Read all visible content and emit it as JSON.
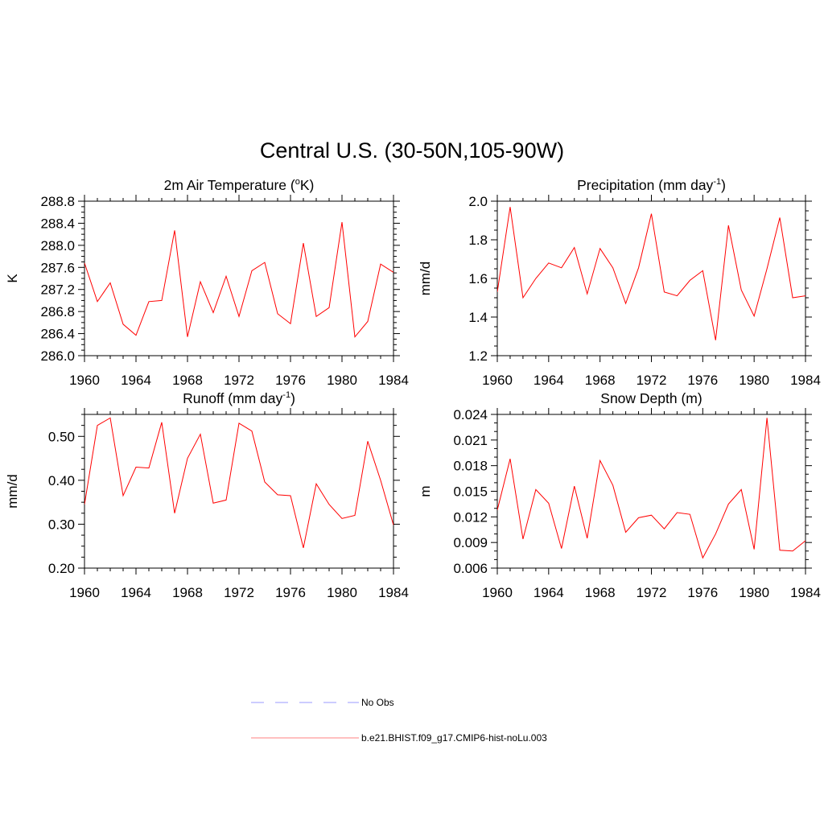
{
  "figure": {
    "title": "Central U.S. (30-50N,105-90W)"
  },
  "colors": {
    "model_line": "#ff0000",
    "obs_line": "#9999ff",
    "model_legend": "#ff8080",
    "axis": "#000000"
  },
  "legend": {
    "items": [
      {
        "label": "No Obs",
        "style": "dashed",
        "color": "#9999ff"
      },
      {
        "label": "b.e21.BHIST.f09_g17.CMIP6-hist-noLu.003",
        "style": "solid",
        "color": "#ff8080"
      }
    ]
  },
  "chart_data": [
    {
      "type": "line",
      "title": "2m Air Temperature",
      "title_sup": "o",
      "title_pre": "2m Air Temperature (",
      "title_post": "K)",
      "ylabel": "K",
      "xlabel": "",
      "xlim": [
        1960,
        1984
      ],
      "ylim": [
        286.0,
        288.8
      ],
      "xticks": [
        1960,
        1964,
        1968,
        1972,
        1976,
        1980,
        1984
      ],
      "yticks": [
        286.0,
        286.4,
        286.8,
        287.2,
        287.6,
        288.0,
        288.4,
        288.8
      ],
      "ytick_labels": [
        "286.0",
        "286.4",
        "286.8",
        "287.2",
        "287.6",
        "288.0",
        "288.4",
        "288.8"
      ],
      "yminor": 4,
      "xminor": 4,
      "x": [
        1960,
        1961,
        1962,
        1963,
        1964,
        1965,
        1966,
        1967,
        1968,
        1969,
        1970,
        1971,
        1972,
        1973,
        1974,
        1975,
        1976,
        1977,
        1978,
        1979,
        1980,
        1981,
        1982,
        1983,
        1984
      ],
      "series": [
        {
          "values": [
            287.68,
            286.98,
            287.32,
            286.57,
            286.37,
            286.98,
            287.0,
            288.27,
            286.34,
            287.34,
            286.78,
            287.44,
            286.71,
            287.54,
            287.69,
            286.76,
            286.58,
            288.04,
            286.71,
            286.87,
            288.42,
            286.34,
            286.62,
            287.66,
            287.51
          ]
        }
      ]
    },
    {
      "type": "line",
      "title": "Precipitation",
      "title_pre": "Precipitation (mm day",
      "title_sup": "-1",
      "title_post": ")",
      "ylabel": "mm/d",
      "xlabel": "",
      "xlim": [
        1960,
        1984
      ],
      "ylim": [
        1.2,
        2.0
      ],
      "xticks": [
        1960,
        1964,
        1968,
        1972,
        1976,
        1980,
        1984
      ],
      "yticks": [
        1.2,
        1.4,
        1.6,
        1.8,
        2.0
      ],
      "ytick_labels": [
        "1.2",
        "1.4",
        "1.6",
        "1.8",
        "2.0"
      ],
      "yminor": 4,
      "xminor": 4,
      "x": [
        1960,
        1961,
        1962,
        1963,
        1964,
        1965,
        1966,
        1967,
        1968,
        1969,
        1970,
        1971,
        1972,
        1973,
        1974,
        1975,
        1976,
        1977,
        1978,
        1979,
        1980,
        1981,
        1982,
        1983,
        1984
      ],
      "series": [
        {
          "values": [
            1.53,
            1.97,
            1.5,
            1.6,
            1.68,
            1.655,
            1.76,
            1.52,
            1.755,
            1.655,
            1.47,
            1.655,
            1.935,
            1.53,
            1.51,
            1.59,
            1.64,
            1.28,
            1.875,
            1.54,
            1.405,
            1.65,
            1.915,
            1.5,
            1.51
          ]
        }
      ]
    },
    {
      "type": "line",
      "title": "Runoff",
      "title_pre": "Runoff (mm day",
      "title_sup": "-1",
      "title_post": ")",
      "ylabel": "mm/d",
      "xlabel": "",
      "xlim": [
        1960,
        1984
      ],
      "ylim": [
        0.2,
        0.55
      ],
      "xticks": [
        1960,
        1964,
        1968,
        1972,
        1976,
        1980,
        1984
      ],
      "yticks": [
        0.2,
        0.3,
        0.4,
        0.5
      ],
      "ytick_labels": [
        "0.20",
        "0.30",
        "0.40",
        "0.50"
      ],
      "yminor": 4,
      "xminor": 4,
      "x": [
        1960,
        1961,
        1962,
        1963,
        1964,
        1965,
        1966,
        1967,
        1968,
        1969,
        1970,
        1971,
        1972,
        1973,
        1974,
        1975,
        1976,
        1977,
        1978,
        1979,
        1980,
        1981,
        1982,
        1983,
        1984
      ],
      "series": [
        {
          "values": [
            0.345,
            0.525,
            0.542,
            0.365,
            0.43,
            0.428,
            0.532,
            0.325,
            0.45,
            0.505,
            0.348,
            0.355,
            0.53,
            0.512,
            0.396,
            0.367,
            0.365,
            0.246,
            0.392,
            0.345,
            0.313,
            0.32,
            0.489,
            0.4,
            0.298
          ]
        }
      ]
    },
    {
      "type": "line",
      "title": "Snow Depth (m)",
      "title_pre": "Snow Depth (m)",
      "title_sup": "",
      "title_post": "",
      "ylabel": "m",
      "xlabel": "",
      "xlim": [
        1960,
        1984
      ],
      "ylim": [
        0.006,
        0.024
      ],
      "xticks": [
        1960,
        1964,
        1968,
        1972,
        1976,
        1980,
        1984
      ],
      "yticks": [
        0.006,
        0.009,
        0.012,
        0.015,
        0.018,
        0.021,
        0.024
      ],
      "ytick_labels": [
        "0.006",
        "0.009",
        "0.012",
        "0.015",
        "0.018",
        "0.021",
        "0.024"
      ],
      "yminor": 3,
      "xminor": 4,
      "x": [
        1960,
        1961,
        1962,
        1963,
        1964,
        1965,
        1966,
        1967,
        1968,
        1969,
        1970,
        1971,
        1972,
        1973,
        1974,
        1975,
        1976,
        1977,
        1978,
        1979,
        1980,
        1981,
        1982,
        1983,
        1984
      ],
      "series": [
        {
          "values": [
            0.0128,
            0.0188,
            0.0094,
            0.0152,
            0.0136,
            0.0083,
            0.0156,
            0.0095,
            0.0186,
            0.0157,
            0.0102,
            0.0119,
            0.0122,
            0.0106,
            0.0125,
            0.0123,
            0.0072,
            0.01,
            0.0135,
            0.0152,
            0.0082,
            0.0236,
            0.0081,
            0.008,
            0.0092
          ]
        }
      ]
    }
  ]
}
